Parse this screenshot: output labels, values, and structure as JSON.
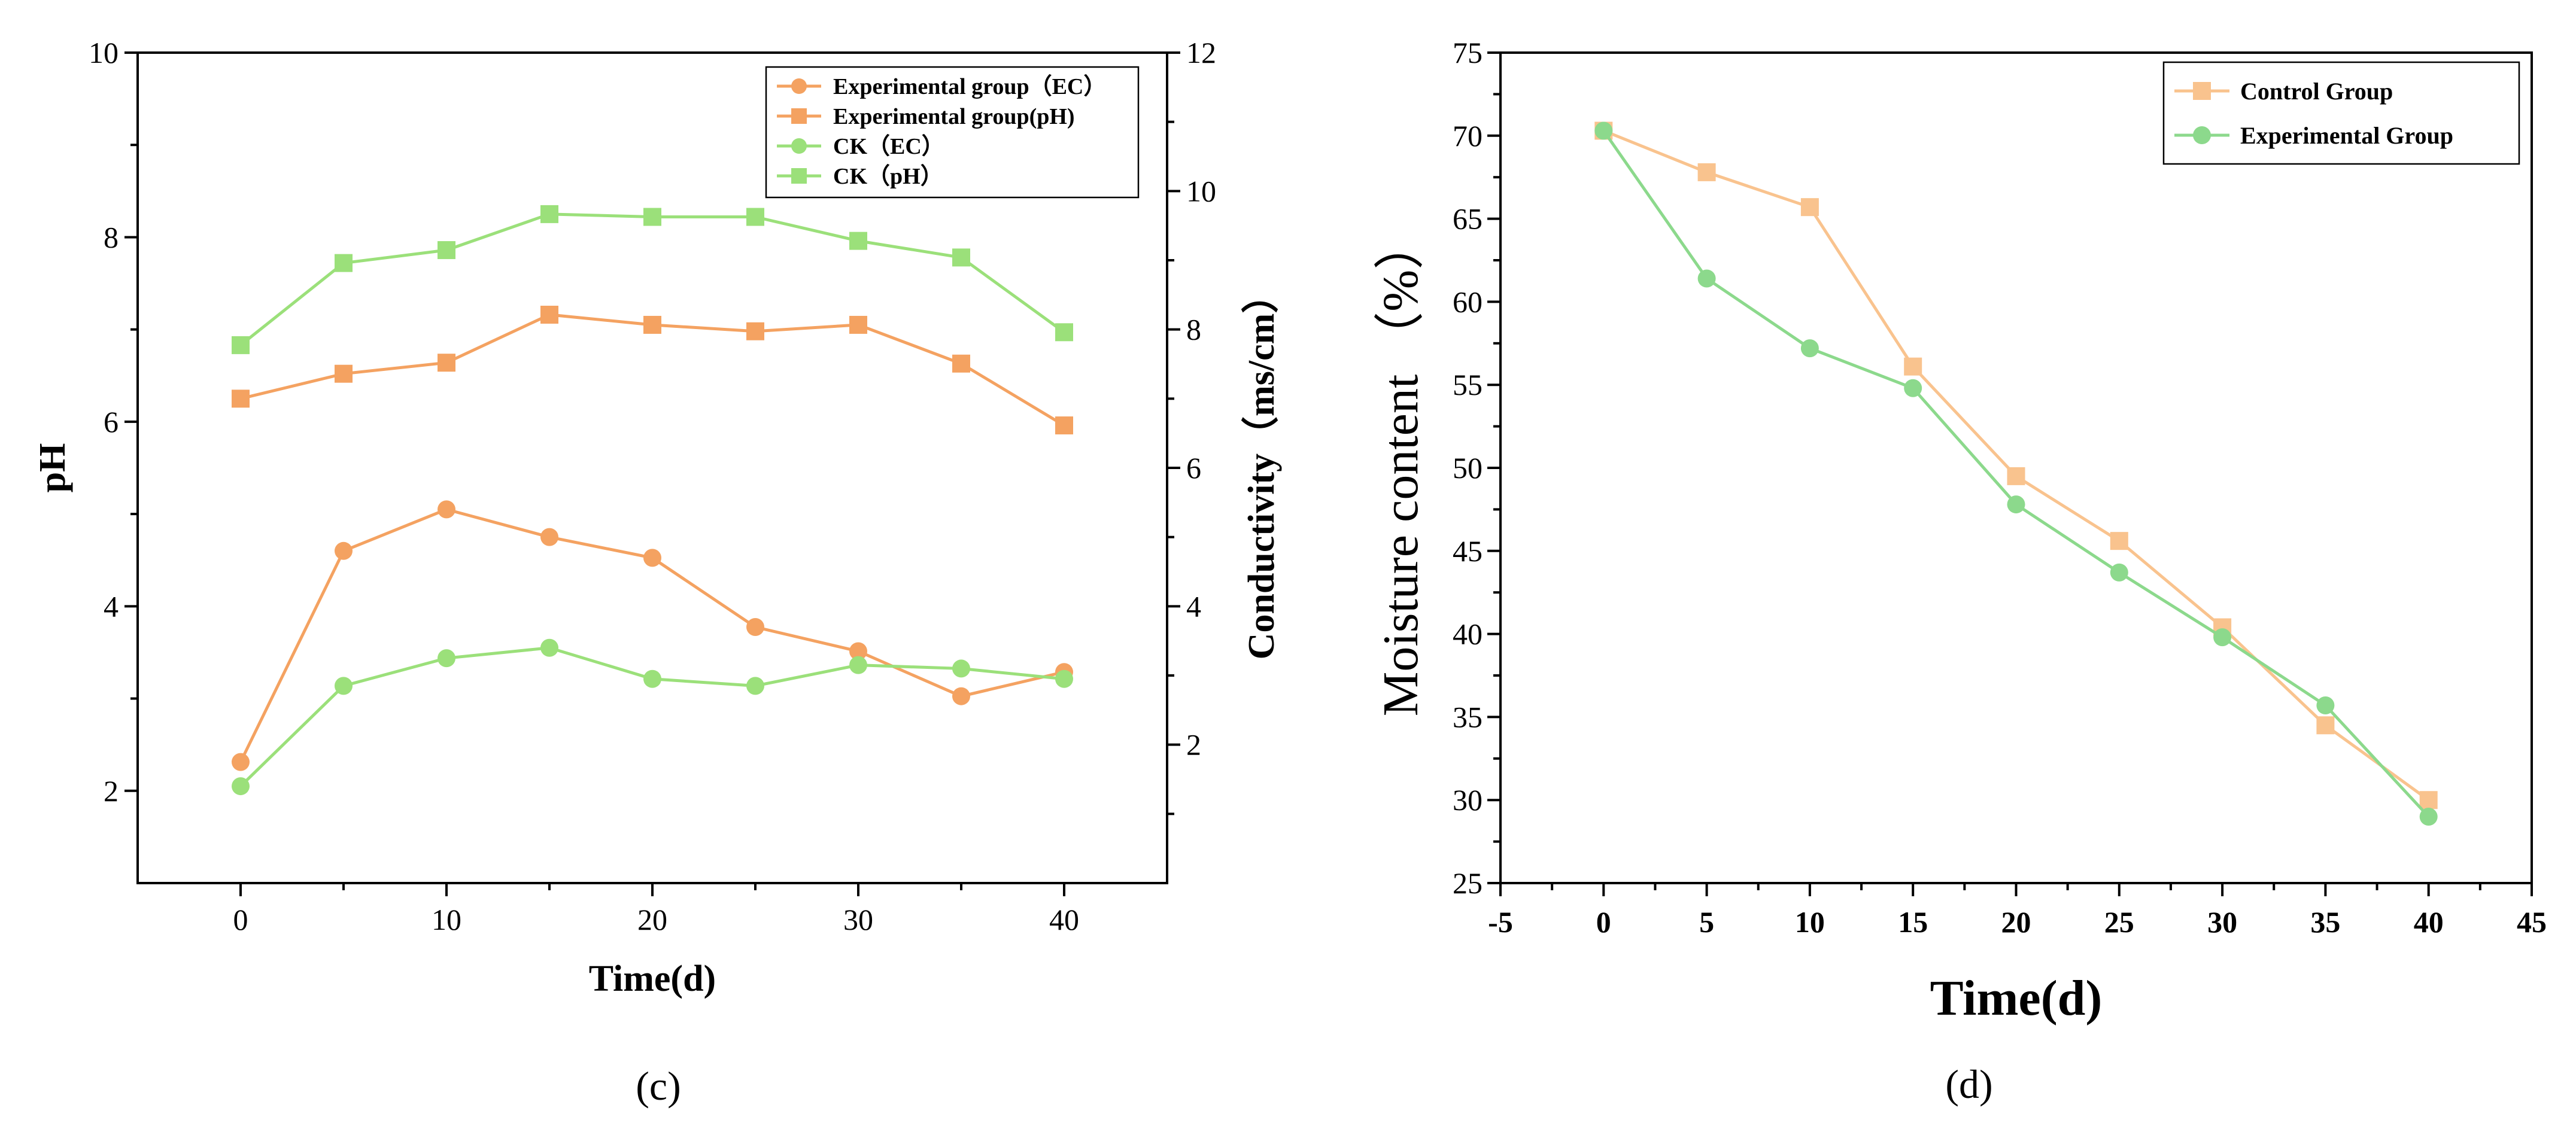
{
  "chart_data": [
    {
      "type": "line",
      "panel_label": "(c)",
      "xlabel": "Time(d)",
      "ylabel": "pH",
      "y2label": "Conductivity（ms/cm）",
      "xlim": [
        -5,
        45
      ],
      "ylim": [
        1,
        10
      ],
      "y2lim": [
        0,
        12
      ],
      "xticks": [
        0,
        10,
        20,
        30,
        40
      ],
      "yticks": [
        2,
        4,
        6,
        8,
        10
      ],
      "y2ticks": [
        2,
        4,
        6,
        8,
        10,
        12
      ],
      "grid": false,
      "legend_position": "top-right",
      "x": [
        0,
        5,
        10,
        15,
        20,
        25,
        30,
        35,
        40
      ],
      "series": [
        {
          "name": "Experimental group（EC）",
          "axis": "right",
          "marker": "circle",
          "color": "#F4A261",
          "values": [
            1.75,
            4.8,
            5.4,
            5.0,
            4.7,
            3.7,
            3.35,
            2.7,
            3.05
          ]
        },
        {
          "name": "Experimental group(pH)",
          "axis": "left",
          "marker": "square",
          "color": "#F4A261",
          "values": [
            6.25,
            6.52,
            6.64,
            7.16,
            7.05,
            6.98,
            7.05,
            6.63,
            5.96
          ]
        },
        {
          "name": "CK（EC）",
          "axis": "right",
          "marker": "circle",
          "color": "#9BE07A",
          "values": [
            1.4,
            2.85,
            3.25,
            3.4,
            2.95,
            2.85,
            3.15,
            3.1,
            2.95
          ]
        },
        {
          "name": "CK（pH）",
          "axis": "left",
          "marker": "square",
          "color": "#9BE07A",
          "values": [
            6.83,
            7.72,
            7.86,
            8.25,
            8.22,
            8.22,
            7.96,
            7.78,
            6.97
          ]
        }
      ]
    },
    {
      "type": "line",
      "panel_label": "(d)",
      "xlabel": "Time(d)",
      "ylabel": "Moisture content （%）",
      "xlim": [
        -5,
        45
      ],
      "ylim": [
        25,
        75
      ],
      "xticks": [
        -5,
        0,
        5,
        10,
        15,
        20,
        25,
        30,
        35,
        40,
        45
      ],
      "yticks": [
        25,
        30,
        35,
        40,
        45,
        50,
        55,
        60,
        65,
        70,
        75
      ],
      "grid": false,
      "legend_position": "top-right",
      "x": [
        0,
        5,
        10,
        15,
        20,
        25,
        30,
        35,
        40
      ],
      "series": [
        {
          "name": "Control Group",
          "marker": "square",
          "color": "#F9C38E",
          "values": [
            70.3,
            67.8,
            65.7,
            56.1,
            49.5,
            45.6,
            40.4,
            34.5,
            30.0
          ]
        },
        {
          "name": "Experimental Group",
          "marker": "circle",
          "color": "#8CD98C",
          "values": [
            70.3,
            61.4,
            57.2,
            54.8,
            47.8,
            43.7,
            39.8,
            35.7,
            29.0
          ]
        }
      ]
    }
  ]
}
